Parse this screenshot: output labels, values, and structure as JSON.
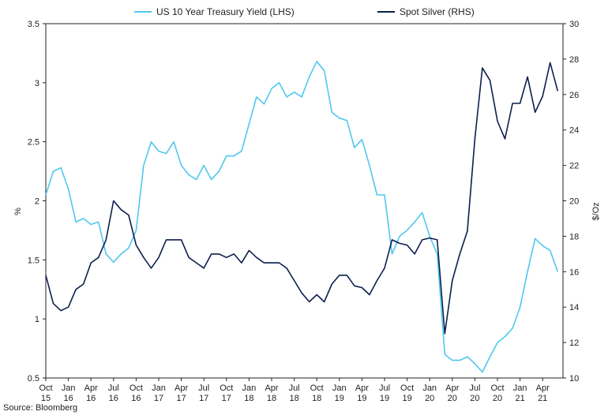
{
  "chart_data": {
    "type": "line",
    "legend": [
      {
        "label": "US 10 Year Treasury Yield (LHS)",
        "color": "#4fc8ee"
      },
      {
        "label": "Spot Silver (RHS)",
        "color": "#0d1f4d"
      }
    ],
    "ylabel_left": "%",
    "ylabel_right": "$/Oz",
    "ylim_left": [
      0.5,
      3.5
    ],
    "ylim_right": [
      10,
      30
    ],
    "yticks_left": [
      "0.5",
      "1",
      "1.5",
      "2",
      "2.5",
      "3",
      "3.5"
    ],
    "yticks_right": [
      "10",
      "12",
      "14",
      "16",
      "18",
      "20",
      "22",
      "24",
      "26",
      "28",
      "30"
    ],
    "xtick_labels": [
      [
        "Oct",
        "15"
      ],
      [
        "Jan",
        "16"
      ],
      [
        "Apr",
        "16"
      ],
      [
        "Jul",
        "16"
      ],
      [
        "Oct",
        "16"
      ],
      [
        "Jan",
        "17"
      ],
      [
        "Apr",
        "17"
      ],
      [
        "Jul",
        "17"
      ],
      [
        "Oct",
        "17"
      ],
      [
        "Jan",
        "18"
      ],
      [
        "Apr",
        "18"
      ],
      [
        "Jul",
        "18"
      ],
      [
        "Oct",
        "18"
      ],
      [
        "Jan",
        "19"
      ],
      [
        "Apr",
        "19"
      ],
      [
        "Jul",
        "19"
      ],
      [
        "Oct",
        "19"
      ],
      [
        "Jan",
        "20"
      ],
      [
        "Apr",
        "20"
      ],
      [
        "Jul",
        "20"
      ],
      [
        "Oct",
        "20"
      ],
      [
        "Jan",
        "21"
      ],
      [
        "Apr",
        "21"
      ]
    ],
    "x": [
      "2015-10",
      "2015-11",
      "2015-12",
      "2016-01",
      "2016-02",
      "2016-03",
      "2016-04",
      "2016-05",
      "2016-06",
      "2016-07",
      "2016-08",
      "2016-09",
      "2016-10",
      "2016-11",
      "2016-12",
      "2017-01",
      "2017-02",
      "2017-03",
      "2017-04",
      "2017-05",
      "2017-06",
      "2017-07",
      "2017-08",
      "2017-09",
      "2017-10",
      "2017-11",
      "2017-12",
      "2018-01",
      "2018-02",
      "2018-03",
      "2018-04",
      "2018-05",
      "2018-06",
      "2018-07",
      "2018-08",
      "2018-09",
      "2018-10",
      "2018-11",
      "2018-12",
      "2019-01",
      "2019-02",
      "2019-03",
      "2019-04",
      "2019-05",
      "2019-06",
      "2019-07",
      "2019-08",
      "2019-09",
      "2019-10",
      "2019-11",
      "2019-12",
      "2020-01",
      "2020-02",
      "2020-03",
      "2020-04",
      "2020-05",
      "2020-06",
      "2020-07",
      "2020-08",
      "2020-09",
      "2020-10",
      "2020-11",
      "2020-12",
      "2021-01",
      "2021-02",
      "2021-03",
      "2021-04",
      "2021-05",
      "2021-06"
    ],
    "series": [
      {
        "name": "US 10 Year Treasury Yield (LHS)",
        "axis": "left",
        "color": "#4fc8ee",
        "values": [
          2.05,
          2.25,
          2.28,
          2.1,
          1.82,
          1.85,
          1.8,
          1.82,
          1.55,
          1.48,
          1.55,
          1.6,
          1.75,
          2.3,
          2.5,
          2.42,
          2.4,
          2.5,
          2.3,
          2.22,
          2.18,
          2.3,
          2.18,
          2.25,
          2.38,
          2.38,
          2.42,
          2.65,
          2.88,
          2.82,
          2.95,
          3.0,
          2.88,
          2.92,
          2.88,
          3.05,
          3.18,
          3.1,
          2.75,
          2.7,
          2.68,
          2.45,
          2.52,
          2.3,
          2.05,
          2.05,
          1.55,
          1.7,
          1.75,
          1.82,
          1.9,
          1.7,
          1.55,
          0.7,
          0.65,
          0.65,
          0.68,
          0.62,
          0.55,
          0.68,
          0.8,
          0.85,
          0.92,
          1.1,
          1.4,
          1.68,
          1.62,
          1.58,
          1.4
        ]
      },
      {
        "name": "Spot Silver (RHS)",
        "axis": "right",
        "color": "#0d1f4d",
        "values": [
          15.8,
          14.2,
          13.8,
          14.0,
          15.0,
          15.3,
          16.5,
          16.8,
          17.8,
          20.0,
          19.5,
          19.2,
          17.5,
          16.8,
          16.2,
          16.8,
          17.8,
          17.8,
          17.8,
          16.8,
          16.5,
          16.2,
          17.0,
          17.0,
          16.8,
          17.0,
          16.5,
          17.2,
          16.8,
          16.5,
          16.5,
          16.5,
          16.2,
          15.5,
          14.8,
          14.3,
          14.7,
          14.3,
          15.3,
          15.8,
          15.8,
          15.2,
          15.1,
          14.7,
          15.5,
          16.2,
          17.8,
          17.6,
          17.5,
          17.0,
          17.8,
          17.9,
          17.8,
          12.5,
          15.5,
          17.0,
          18.3,
          23.5,
          27.5,
          26.8,
          24.5,
          23.5,
          25.5,
          25.5,
          27.0,
          25.0,
          25.9,
          27.8,
          26.2
        ]
      }
    ],
    "source": "Source: Bloomberg"
  }
}
